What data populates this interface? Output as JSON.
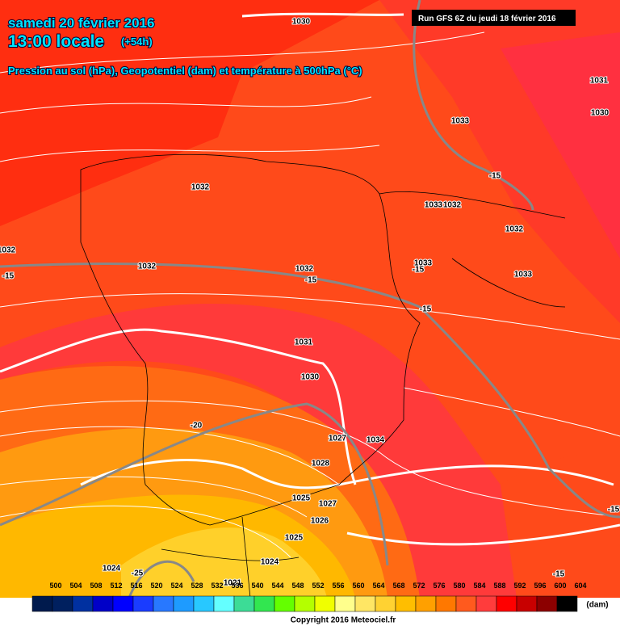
{
  "header": {
    "title": "samedi 20 février 2016",
    "time": "13:00 locale",
    "offset": "(+54h)",
    "subtitle": "Pression au sol (hPa), Geopotentiel (dam) et température à 500hPa (°C)",
    "run": "Run GFS 6Z du jeudi 18 février 2016"
  },
  "map": {
    "pressure_labels": [
      1030,
      1031,
      1030,
      1033,
      1032,
      1033,
      1032,
      1032,
      1032,
      1032,
      1032,
      1033,
      1033,
      1031,
      1030,
      1027,
      1034,
      1028,
      1025,
      1027,
      1026,
      1025,
      1024,
      1024,
      1021
    ],
    "temperature_labels": [
      -15,
      -15,
      -15,
      -15,
      -15,
      -20,
      -15,
      -15,
      -25
    ]
  },
  "legend": {
    "values": [
      500,
      504,
      508,
      512,
      516,
      520,
      524,
      528,
      532,
      536,
      540,
      544,
      548,
      552,
      556,
      560,
      564,
      568,
      572,
      576,
      580,
      584,
      588,
      592,
      596,
      600,
      604
    ],
    "colors": [
      "#001a4d",
      "#00205f",
      "#0030a0",
      "#0000c8",
      "#0000ff",
      "#1a3cff",
      "#2878ff",
      "#1e9bff",
      "#28c8ff",
      "#64ffff",
      "#3cdc96",
      "#32e650",
      "#64ff00",
      "#b4ff00",
      "#f0ff00",
      "#ffff8c",
      "#ffe664",
      "#ffd232",
      "#ffbe00",
      "#ffa000",
      "#ff7800",
      "#ff5a1e",
      "#ff3c3c",
      "#ff0000",
      "#c80000",
      "#8c0000",
      "#000000"
    ],
    "unit": "(dam)"
  },
  "footer": {
    "copyright": "Copyright 2016 Meteociel.fr"
  }
}
